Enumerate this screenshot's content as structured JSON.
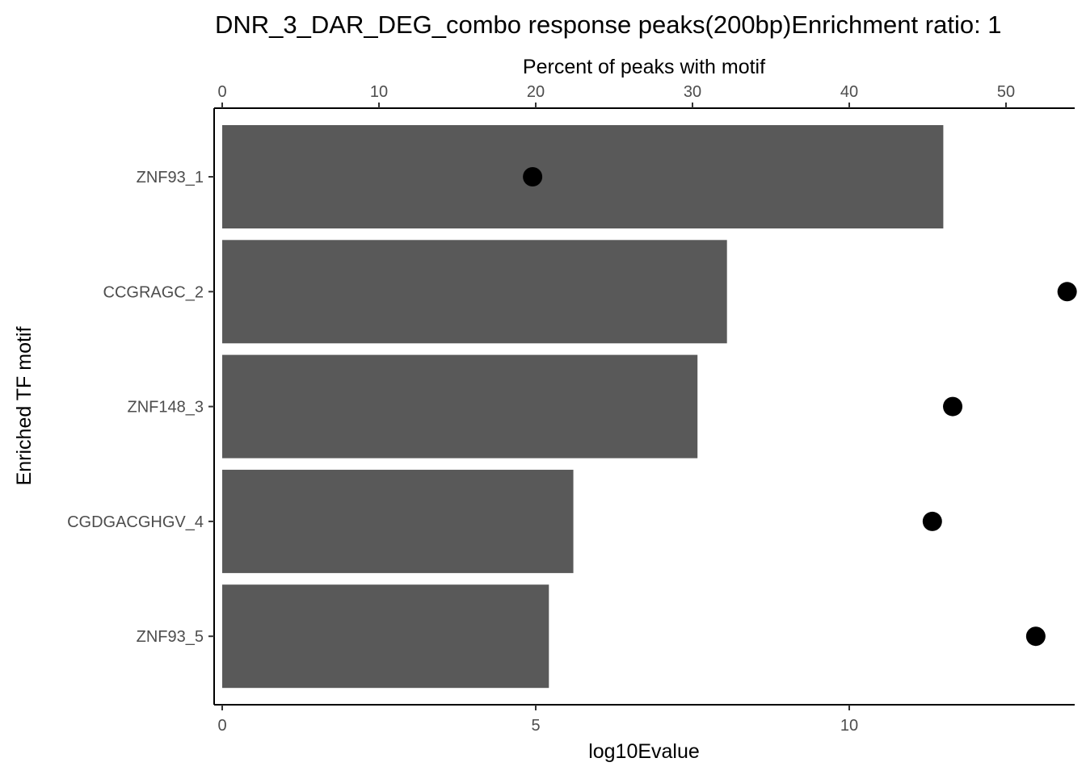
{
  "chart_data": {
    "type": "bar",
    "title": "DNR_3_DAR_DEG_combo response peaks(200bp)Enrichment ratio: 1",
    "xlabel_bottom": "log10Evalue",
    "xlabel_top": "Percent of peaks with motif",
    "ylabel": "Enriched TF motif",
    "categories": [
      "ZNF93_1",
      "CCGRAGC_2",
      "ZNF148_3",
      "CGDGACGHGV_4",
      "ZNF93_5"
    ],
    "bar_series": {
      "axis": "bottom",
      "values": [
        11.5,
        8.05,
        7.58,
        5.6,
        5.21
      ],
      "color": "#595959",
      "ticks": [
        0,
        5,
        10
      ],
      "tick_labels": [
        "0",
        "5",
        "10"
      ]
    },
    "point_series": {
      "axis": "top",
      "values": [
        19.8,
        53.9,
        46.6,
        45.3,
        51.9
      ],
      "color": "#000000",
      "ticks": [
        0,
        10,
        20,
        30,
        40,
        50
      ],
      "tick_labels": [
        "0",
        "10",
        "20",
        "30",
        "40",
        "50"
      ]
    },
    "grid": false
  }
}
